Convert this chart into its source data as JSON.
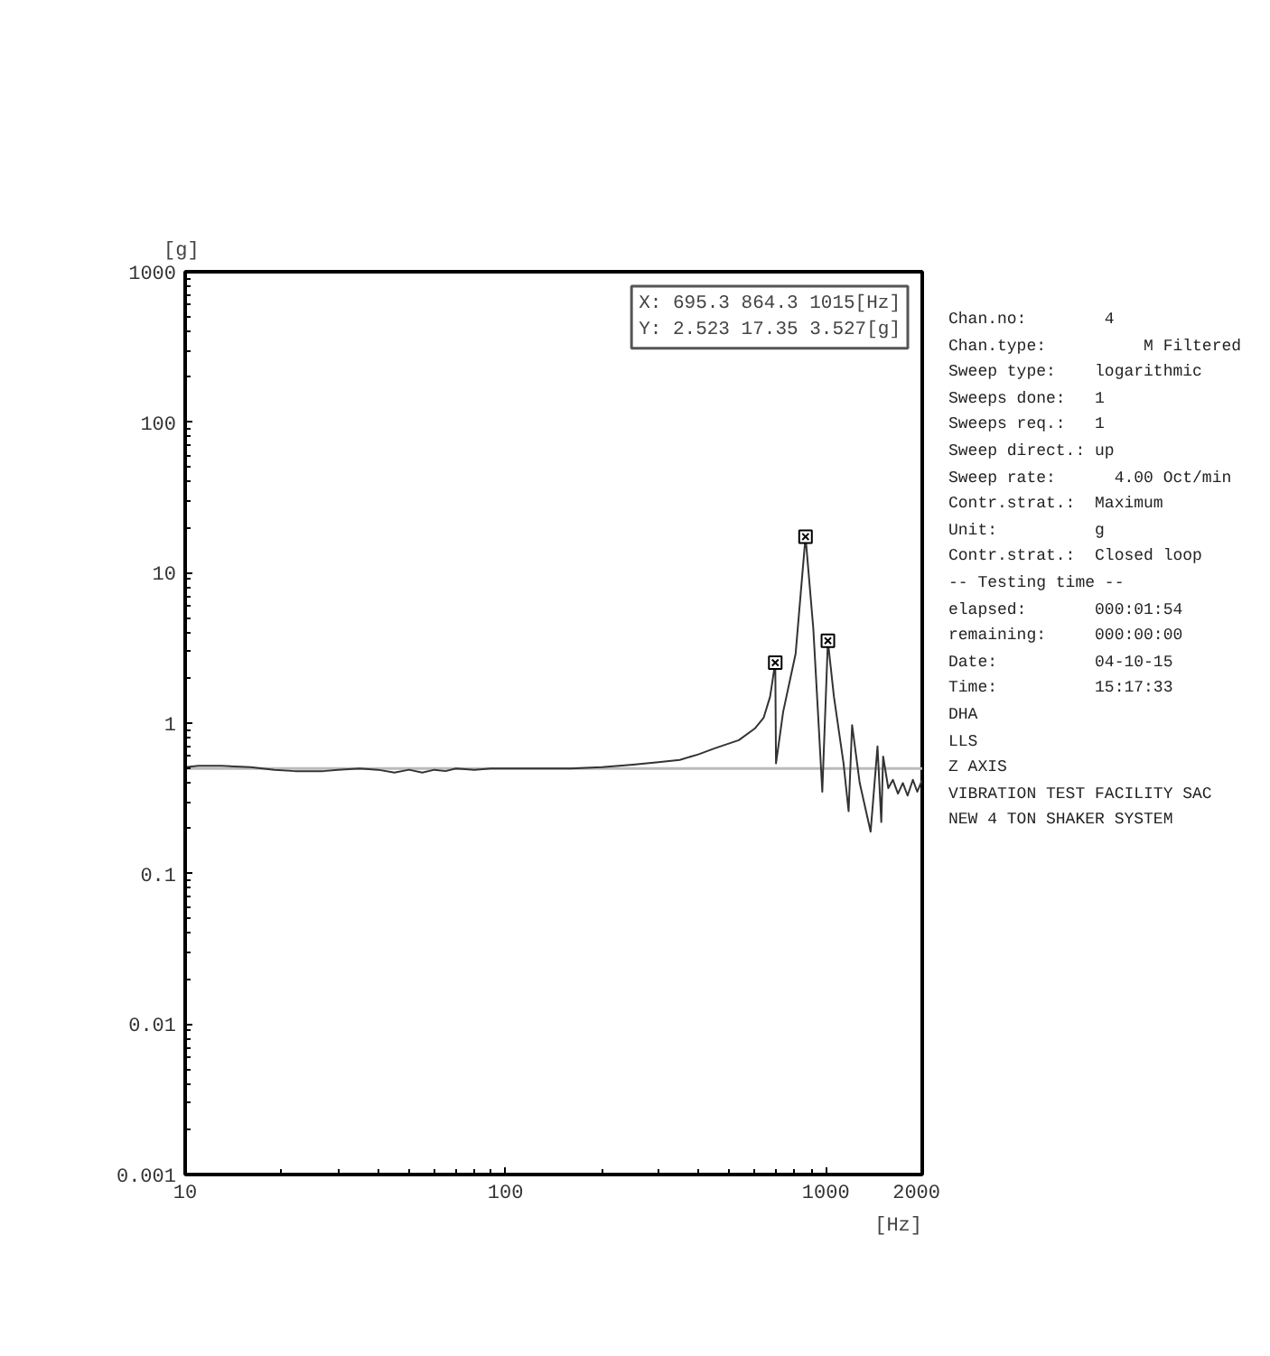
{
  "chart_data": {
    "type": "line",
    "xlabel": "[Hz]",
    "ylabel": "[g]",
    "log": "xy",
    "xlim": [
      10,
      2000
    ],
    "ylim": [
      0.001,
      1000
    ],
    "xticks": [
      10,
      100,
      1000,
      2000
    ],
    "yticks": [
      0.001,
      0.01,
      0.1,
      1,
      10,
      100,
      1000
    ],
    "grid": false,
    "line_style": "solid",
    "marker": "none",
    "series": [
      {
        "color": "#333333",
        "x": [
          10,
          11,
          13,
          16,
          19,
          22,
          27,
          30,
          35,
          40,
          45,
          50,
          55,
          60,
          65,
          70,
          80,
          90,
          100,
          130,
          160,
          200,
          250,
          300,
          350,
          400,
          450,
          535,
          600,
          640,
          670,
          695.3,
          699,
          736,
          805,
          864.3,
          914,
          945,
          975,
          1015,
          1060,
          1136,
          1178,
          1208,
          1276,
          1380,
          1450,
          1490,
          1510,
          1567,
          1620,
          1680,
          1740,
          1800,
          1870,
          1930,
          2000
        ],
        "values": [
          0.51,
          0.52,
          0.52,
          0.51,
          0.49,
          0.48,
          0.48,
          0.49,
          0.5,
          0.49,
          0.47,
          0.49,
          0.47,
          0.49,
          0.48,
          0.5,
          0.49,
          0.5,
          0.5,
          0.5,
          0.5,
          0.51,
          0.53,
          0.55,
          0.57,
          0.62,
          0.68,
          0.77,
          0.92,
          1.09,
          1.5,
          2.523,
          0.54,
          1.19,
          2.9,
          17.35,
          4.25,
          1.19,
          0.35,
          3.527,
          1.5,
          0.54,
          0.26,
          0.97,
          0.4,
          0.19,
          0.7,
          0.22,
          0.6,
          0.37,
          0.42,
          0.34,
          0.4,
          0.33,
          0.42,
          0.35,
          0.42
        ]
      },
      {
        "type": "scatter",
        "marker": "square",
        "color": "#000000",
        "x": [
          695.3,
          864.3,
          1015
        ],
        "values": [
          2.523,
          17.35,
          3.527
        ]
      }
    ],
    "ref_lines": [
      {
        "axis": "y",
        "value": 0.5,
        "color": "#bbbbbb"
      }
    ],
    "annotations": [
      "X: 695.3 864.3 1015[Hz]",
      "Y: 2.523 17.35 3.527[g]",
      "Chan.no:        4",
      "Chan.type:          M Filtered",
      "Sweep type:    logarithmic",
      "Sweeps done:   1",
      "Sweeps req.:   1",
      "Sweep direct.: up",
      "Sweep rate:      4.00 Oct/min",
      "Contr.strat.:  Maximum",
      "Unit:          g",
      "Contr.strat.:  Closed loop",
      "-- Testing time --",
      "elapsed:       000:01:54",
      "remaining:     000:00:00",
      "Date:          04-10-15",
      "Time:          15:17:33",
      "DHA",
      "LLS",
      "Z AXIS",
      "VIBRATION TEST FACILITY SAC",
      "NEW 4 TON SHAKER SYSTEM"
    ]
  }
}
